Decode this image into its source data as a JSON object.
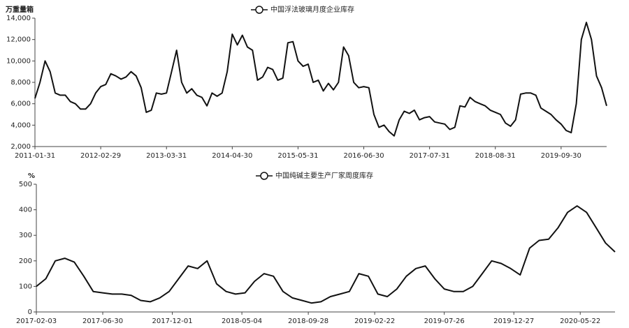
{
  "chart_data": [
    {
      "type": "line",
      "y_label": "万重量箱",
      "categories": [
        "2011-01-31",
        null,
        null,
        null,
        null,
        null,
        null,
        null,
        null,
        null,
        null,
        null,
        null,
        "2012-02-29",
        null,
        null,
        null,
        null,
        null,
        null,
        null,
        null,
        null,
        null,
        null,
        null,
        "2013-03-31",
        null,
        null,
        null,
        null,
        null,
        null,
        null,
        null,
        null,
        null,
        null,
        null,
        "2014-04-30",
        null,
        null,
        null,
        null,
        null,
        null,
        null,
        null,
        null,
        null,
        null,
        null,
        "2015-05-31",
        null,
        null,
        null,
        null,
        null,
        null,
        null,
        null,
        null,
        null,
        null,
        null,
        "2016-06-30",
        null,
        null,
        null,
        null,
        null,
        null,
        null,
        null,
        null,
        null,
        null,
        null,
        "2017-07-31",
        null,
        null,
        null,
        null,
        null,
        null,
        null,
        null,
        null,
        null,
        null,
        null,
        "2018-08-31",
        null,
        null,
        null,
        null,
        null,
        null,
        null,
        null,
        null,
        null,
        null,
        null,
        "2019-09-30",
        null,
        null,
        null,
        null,
        null,
        null,
        null,
        null,
        null
      ],
      "series": [
        {
          "name": "中国浮法玻璃月度企业库存",
          "color": "#111111",
          "values": [
            6500,
            8000,
            10000,
            9000,
            7000,
            6800,
            6800,
            6200,
            6000,
            5500,
            5500,
            6000,
            7000,
            7600,
            7800,
            8800,
            8600,
            8300,
            8500,
            9000,
            8600,
            7500,
            5200,
            5400,
            7000,
            6900,
            7000,
            9000,
            11000,
            8000,
            7000,
            7400,
            6800,
            6600,
            5800,
            7000,
            6700,
            7000,
            9000,
            12500,
            11500,
            12400,
            11300,
            11000,
            8200,
            8500,
            9400,
            9200,
            8200,
            8400,
            11700,
            11800,
            10000,
            9500,
            9700,
            8000,
            8200,
            7200,
            7900,
            7300,
            8000,
            11300,
            10500,
            8000,
            7500,
            7600,
            7500,
            5000,
            3800,
            4000,
            3400,
            3000,
            4500,
            5300,
            5100,
            5400,
            4500,
            4700,
            4800,
            4300,
            4200,
            4100,
            3600,
            3800,
            5800,
            5700,
            6600,
            6200,
            6000,
            5800,
            5400,
            5200,
            5000,
            4200,
            3900,
            4500,
            6900,
            7000,
            7000,
            6800,
            5600,
            5300,
            5000,
            4500,
            4100,
            3500,
            3300,
            6000,
            12000,
            13600,
            12000,
            8600,
            7500,
            5800
          ]
        }
      ],
      "ylim": [
        2000,
        14000
      ],
      "yticks": [
        {
          "value": 2000,
          "label": "2,000"
        },
        {
          "value": 4000,
          "label": "4,000"
        },
        {
          "value": 6000,
          "label": "6,000"
        },
        {
          "value": 8000,
          "label": "8,000"
        },
        {
          "value": 10000,
          "label": "10,000"
        },
        {
          "value": 12000,
          "label": "12,000"
        },
        {
          "value": 14000,
          "label": "14,000"
        }
      ],
      "grid": false
    },
    {
      "type": "line",
      "y_label": "%",
      "x": [
        "2017-02-03",
        "2017-02-24",
        "2017-03-17",
        "2017-04-07",
        "2017-04-28",
        "2017-05-19",
        "2017-06-09",
        "2017-06-30",
        "2017-07-21",
        "2017-08-11",
        "2017-09-01",
        "2017-09-22",
        "2017-10-13",
        "2017-11-03",
        "2017-11-24",
        "2017-12-15",
        "2018-01-05",
        "2018-01-26",
        "2018-02-16",
        "2018-03-09",
        "2018-03-30",
        "2018-04-20",
        "2018-05-11",
        "2018-06-01",
        "2018-06-22",
        "2018-07-13",
        "2018-08-03",
        "2018-08-24",
        "2018-09-14",
        "2018-10-05",
        "2018-10-26",
        "2018-11-16",
        "2018-12-07",
        "2018-12-28",
        "2019-01-18",
        "2019-02-08",
        "2019-03-01",
        "2019-03-22",
        "2019-04-12",
        "2019-05-03",
        "2019-05-24",
        "2019-06-14",
        "2019-07-05",
        "2019-07-26",
        "2019-08-16",
        "2019-09-06",
        "2019-09-27",
        "2019-10-18",
        "2019-11-08",
        "2019-11-29",
        "2019-12-20",
        "2020-01-10",
        "2020-01-31",
        "2020-02-21",
        "2020-03-13",
        "2020-04-03",
        "2020-04-24",
        "2020-05-15",
        "2020-06-05",
        "2020-06-26",
        "2020-07-17",
        "2020-08-07"
      ],
      "series": [
        {
          "name": "中国纯碱主要生产厂家周度库存",
          "color": "#111111",
          "values": [
            100,
            130,
            200,
            210,
            195,
            140,
            80,
            75,
            70,
            70,
            65,
            45,
            40,
            55,
            80,
            130,
            180,
            170,
            200,
            110,
            80,
            70,
            75,
            120,
            150,
            140,
            80,
            55,
            45,
            35,
            40,
            60,
            70,
            80,
            150,
            140,
            70,
            60,
            90,
            140,
            170,
            180,
            130,
            90,
            80,
            80,
            100,
            150,
            200,
            190,
            170,
            145,
            250,
            280,
            285,
            330,
            390,
            415,
            390,
            330,
            270,
            235
          ]
        }
      ],
      "xlim": [
        "2017-02-03",
        "2020-08-07"
      ],
      "xticks": [
        "2017-02-03",
        "2017-06-30",
        "2017-12-01",
        "2018-05-04",
        "2018-09-28",
        "2019-02-22",
        "2019-07-26",
        "2019-12-27",
        "2020-05-22"
      ],
      "ylim": [
        0,
        500
      ],
      "yticks": [
        0,
        100,
        200,
        300,
        400,
        500
      ],
      "grid": false
    }
  ]
}
